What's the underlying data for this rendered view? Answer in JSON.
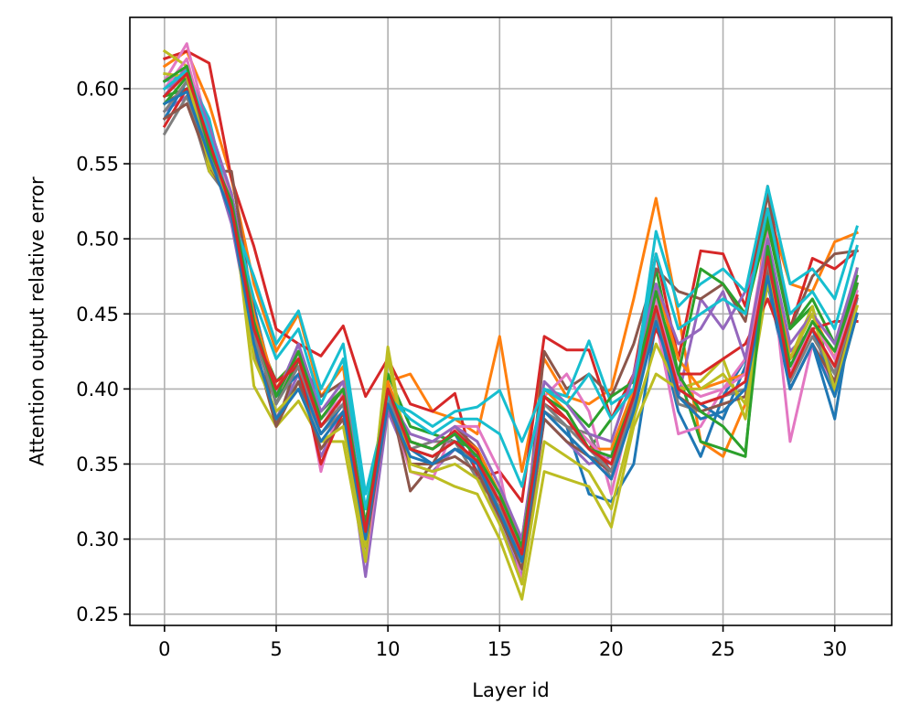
{
  "chart_data": {
    "type": "line",
    "title": "",
    "xlabel": "Layer id",
    "ylabel": "Attention output relative error",
    "xlim": [
      -1.55,
      32.55
    ],
    "ylim": [
      0.2425,
      0.6475
    ],
    "xticks": [
      0,
      5,
      10,
      15,
      20,
      25,
      30
    ],
    "yticks": [
      0.25,
      0.3,
      0.35,
      0.4,
      0.45,
      0.5,
      0.55,
      0.6
    ],
    "xtick_labels": [
      "0",
      "5",
      "10",
      "15",
      "20",
      "25",
      "30"
    ],
    "ytick_labels": [
      "0.25",
      "0.30",
      "0.35",
      "0.40",
      "0.45",
      "0.50",
      "0.55",
      "0.60"
    ],
    "grid": true,
    "legend": "none",
    "x": [
      0,
      1,
      2,
      3,
      4,
      5,
      6,
      7,
      8,
      9,
      10,
      11,
      12,
      13,
      14,
      15,
      16,
      17,
      18,
      19,
      20,
      21,
      22,
      23,
      24,
      25,
      26,
      27,
      28,
      29,
      30,
      31
    ],
    "series": [
      {
        "color": "#1f77b4",
        "values": [
          0.6,
          0.61,
          0.575,
          0.53,
          0.455,
          0.395,
          0.43,
          0.375,
          0.395,
          0.29,
          0.4,
          0.365,
          0.36,
          0.37,
          0.345,
          0.325,
          0.295,
          0.39,
          0.375,
          0.33,
          0.325,
          0.35,
          0.445,
          0.385,
          0.355,
          0.395,
          0.42,
          0.47,
          0.4,
          0.43,
          0.38,
          0.47
        ]
      },
      {
        "color": "#ff7f0e",
        "values": [
          0.615,
          0.625,
          0.59,
          0.54,
          0.47,
          0.425,
          0.45,
          0.395,
          0.415,
          0.3,
          0.405,
          0.41,
          0.385,
          0.38,
          0.37,
          0.435,
          0.345,
          0.42,
          0.395,
          0.39,
          0.4,
          0.46,
          0.527,
          0.45,
          0.365,
          0.355,
          0.39,
          0.52,
          0.47,
          0.465,
          0.498,
          0.504
        ]
      },
      {
        "color": "#2ca02c",
        "values": [
          0.595,
          0.6,
          0.57,
          0.52,
          0.44,
          0.405,
          0.42,
          0.385,
          0.4,
          0.305,
          0.41,
          0.375,
          0.37,
          0.365,
          0.36,
          0.33,
          0.29,
          0.395,
          0.385,
          0.36,
          0.38,
          0.4,
          0.48,
          0.41,
          0.365,
          0.36,
          0.355,
          0.515,
          0.44,
          0.455,
          0.4,
          0.48
        ]
      },
      {
        "color": "#d62728",
        "values": [
          0.62,
          0.625,
          0.617,
          0.54,
          0.495,
          0.44,
          0.43,
          0.422,
          0.442,
          0.395,
          0.42,
          0.39,
          0.385,
          0.397,
          0.34,
          0.345,
          0.325,
          0.435,
          0.426,
          0.426,
          0.38,
          0.41,
          0.49,
          0.42,
          0.492,
          0.49,
          0.455,
          0.535,
          0.44,
          0.487,
          0.48,
          0.492
        ]
      },
      {
        "color": "#9467bd",
        "values": [
          0.585,
          0.595,
          0.56,
          0.51,
          0.43,
          0.38,
          0.41,
          0.355,
          0.385,
          0.275,
          0.385,
          0.35,
          0.345,
          0.36,
          0.35,
          0.31,
          0.275,
          0.38,
          0.365,
          0.35,
          0.355,
          0.38,
          0.465,
          0.395,
          0.46,
          0.44,
          0.465,
          0.5,
          0.425,
          0.44,
          0.4,
          0.475
        ]
      },
      {
        "color": "#8c564b",
        "values": [
          0.59,
          0.6,
          0.545,
          0.545,
          0.45,
          0.375,
          0.42,
          0.395,
          0.405,
          0.3,
          0.4,
          0.332,
          0.35,
          0.375,
          0.36,
          0.33,
          0.285,
          0.425,
          0.4,
          0.41,
          0.395,
          0.43,
          0.48,
          0.465,
          0.46,
          0.47,
          0.445,
          0.53,
          0.44,
          0.475,
          0.49,
          0.492
        ]
      },
      {
        "color": "#e377c2",
        "values": [
          0.605,
          0.63,
          0.57,
          0.53,
          0.445,
          0.39,
          0.425,
          0.345,
          0.4,
          0.285,
          0.395,
          0.345,
          0.34,
          0.375,
          0.375,
          0.345,
          0.27,
          0.395,
          0.41,
          0.385,
          0.33,
          0.395,
          0.445,
          0.37,
          0.375,
          0.4,
          0.42,
          0.505,
          0.365,
          0.43,
          0.4,
          0.47
        ]
      },
      {
        "color": "#7f7f7f",
        "values": [
          0.57,
          0.595,
          0.545,
          0.525,
          0.425,
          0.38,
          0.405,
          0.37,
          0.385,
          0.3,
          0.395,
          0.36,
          0.365,
          0.365,
          0.34,
          0.32,
          0.285,
          0.385,
          0.375,
          0.37,
          0.34,
          0.39,
          0.45,
          0.39,
          0.385,
          0.39,
          0.395,
          0.49,
          0.42,
          0.44,
          0.41,
          0.47
        ]
      },
      {
        "color": "#bcbd22",
        "values": [
          0.625,
          0.615,
          0.545,
          0.53,
          0.402,
          0.375,
          0.392,
          0.365,
          0.365,
          0.285,
          0.428,
          0.345,
          0.342,
          0.335,
          0.33,
          0.3,
          0.26,
          0.345,
          0.34,
          0.335,
          0.308,
          0.375,
          0.41,
          0.4,
          0.405,
          0.42,
          0.38,
          0.47,
          0.42,
          0.455,
          0.395,
          0.45
        ]
      },
      {
        "color": "#17becf",
        "values": [
          0.605,
          0.61,
          0.58,
          0.515,
          0.475,
          0.43,
          0.452,
          0.4,
          0.43,
          0.33,
          0.392,
          0.385,
          0.375,
          0.385,
          0.388,
          0.399,
          0.365,
          0.4,
          0.395,
          0.432,
          0.39,
          0.4,
          0.505,
          0.455,
          0.47,
          0.48,
          0.465,
          0.535,
          0.47,
          0.48,
          0.46,
          0.508
        ]
      },
      {
        "color": "#1f77b4",
        "values": [
          0.58,
          0.605,
          0.56,
          0.52,
          0.44,
          0.395,
          0.41,
          0.37,
          0.39,
          0.31,
          0.39,
          0.36,
          0.35,
          0.36,
          0.355,
          0.325,
          0.29,
          0.385,
          0.37,
          0.355,
          0.35,
          0.39,
          0.455,
          0.4,
          0.39,
          0.38,
          0.415,
          0.48,
          0.41,
          0.44,
          0.4,
          0.46
        ]
      },
      {
        "color": "#ff7f0e",
        "values": [
          0.6,
          0.612,
          0.565,
          0.525,
          0.45,
          0.4,
          0.425,
          0.38,
          0.4,
          0.3,
          0.405,
          0.365,
          0.36,
          0.37,
          0.36,
          0.33,
          0.3,
          0.4,
          0.385,
          0.36,
          0.36,
          0.4,
          0.47,
          0.42,
          0.4,
          0.405,
          0.41,
          0.5,
          0.42,
          0.45,
          0.42,
          0.47
        ]
      },
      {
        "color": "#2ca02c",
        "values": [
          0.59,
          0.608,
          0.555,
          0.52,
          0.44,
          0.39,
          0.42,
          0.375,
          0.395,
          0.305,
          0.4,
          0.36,
          0.355,
          0.365,
          0.35,
          0.32,
          0.29,
          0.4,
          0.39,
          0.375,
          0.395,
          0.405,
          0.46,
          0.41,
          0.48,
          0.47,
          0.45,
          0.51,
          0.44,
          0.46,
          0.43,
          0.475
        ]
      },
      {
        "color": "#d62728",
        "values": [
          0.575,
          0.6,
          0.56,
          0.515,
          0.435,
          0.405,
          0.415,
          0.35,
          0.385,
          0.3,
          0.4,
          0.365,
          0.36,
          0.372,
          0.358,
          0.315,
          0.3,
          0.39,
          0.38,
          0.365,
          0.345,
          0.395,
          0.44,
          0.41,
          0.41,
          0.42,
          0.43,
          0.46,
          0.42,
          0.44,
          0.445,
          0.445
        ]
      },
      {
        "color": "#9467bd",
        "values": [
          0.595,
          0.615,
          0.575,
          0.53,
          0.445,
          0.395,
          0.43,
          0.385,
          0.405,
          0.31,
          0.395,
          0.37,
          0.365,
          0.375,
          0.365,
          0.335,
          0.3,
          0.405,
          0.39,
          0.37,
          0.365,
          0.41,
          0.47,
          0.43,
          0.44,
          0.465,
          0.42,
          0.5,
          0.43,
          0.45,
          0.43,
          0.48
        ]
      },
      {
        "color": "#8c564b",
        "values": [
          0.58,
          0.59,
          0.55,
          0.52,
          0.43,
          0.375,
          0.405,
          0.36,
          0.38,
          0.295,
          0.39,
          0.35,
          0.35,
          0.355,
          0.345,
          0.315,
          0.28,
          0.38,
          0.365,
          0.355,
          0.345,
          0.385,
          0.455,
          0.395,
          0.385,
          0.39,
          0.395,
          0.48,
          0.4,
          0.43,
          0.405,
          0.455
        ]
      },
      {
        "color": "#e377c2",
        "values": [
          0.6,
          0.62,
          0.565,
          0.525,
          0.44,
          0.4,
          0.42,
          0.38,
          0.395,
          0.305,
          0.4,
          0.365,
          0.36,
          0.37,
          0.355,
          0.325,
          0.295,
          0.395,
          0.38,
          0.365,
          0.35,
          0.395,
          0.46,
          0.405,
          0.395,
          0.4,
          0.41,
          0.49,
          0.41,
          0.445,
          0.42,
          0.465
        ]
      },
      {
        "color": "#7f7f7f",
        "values": [
          0.585,
          0.605,
          0.56,
          0.52,
          0.435,
          0.39,
          0.415,
          0.375,
          0.39,
          0.3,
          0.395,
          0.36,
          0.355,
          0.365,
          0.35,
          0.32,
          0.29,
          0.39,
          0.375,
          0.36,
          0.345,
          0.39,
          0.45,
          0.4,
          0.39,
          0.395,
          0.4,
          0.485,
          0.405,
          0.435,
          0.41,
          0.46
        ]
      },
      {
        "color": "#bcbd22",
        "values": [
          0.61,
          0.608,
          0.55,
          0.525,
          0.42,
          0.385,
          0.4,
          0.365,
          0.375,
          0.295,
          0.42,
          0.35,
          0.345,
          0.35,
          0.34,
          0.31,
          0.27,
          0.365,
          0.355,
          0.345,
          0.32,
          0.38,
          0.43,
          0.4,
          0.4,
          0.41,
          0.39,
          0.475,
          0.42,
          0.45,
          0.4,
          0.455
        ]
      },
      {
        "color": "#17becf",
        "values": [
          0.6,
          0.612,
          0.57,
          0.52,
          0.46,
          0.42,
          0.44,
          0.39,
          0.42,
          0.32,
          0.395,
          0.38,
          0.37,
          0.38,
          0.38,
          0.37,
          0.335,
          0.4,
          0.39,
          0.41,
          0.38,
          0.4,
          0.49,
          0.44,
          0.45,
          0.46,
          0.45,
          0.52,
          0.45,
          0.465,
          0.44,
          0.495
        ]
      },
      {
        "color": "#1f77b4",
        "values": [
          0.59,
          0.598,
          0.555,
          0.515,
          0.43,
          0.38,
          0.4,
          0.365,
          0.385,
          0.3,
          0.39,
          0.355,
          0.35,
          0.36,
          0.35,
          0.318,
          0.285,
          0.385,
          0.37,
          0.355,
          0.34,
          0.385,
          0.445,
          0.395,
          0.38,
          0.385,
          0.4,
          0.475,
          0.4,
          0.43,
          0.395,
          0.45
        ]
      },
      {
        "color": "#2ca02c",
        "values": [
          0.605,
          0.615,
          0.56,
          0.525,
          0.445,
          0.395,
          0.425,
          0.38,
          0.4,
          0.31,
          0.4,
          0.365,
          0.36,
          0.37,
          0.355,
          0.33,
          0.295,
          0.395,
          0.385,
          0.36,
          0.355,
          0.395,
          0.465,
          0.41,
          0.385,
          0.375,
          0.358,
          0.495,
          0.415,
          0.445,
          0.425,
          0.47
        ]
      },
      {
        "color": "#d62728",
        "values": [
          0.595,
          0.61,
          0.565,
          0.52,
          0.44,
          0.4,
          0.42,
          0.375,
          0.395,
          0.305,
          0.4,
          0.36,
          0.355,
          0.365,
          0.352,
          0.325,
          0.29,
          0.395,
          0.38,
          0.36,
          0.35,
          0.395,
          0.455,
          0.4,
          0.39,
          0.395,
          0.405,
          0.488,
          0.408,
          0.44,
          0.415,
          0.462
        ]
      }
    ]
  }
}
